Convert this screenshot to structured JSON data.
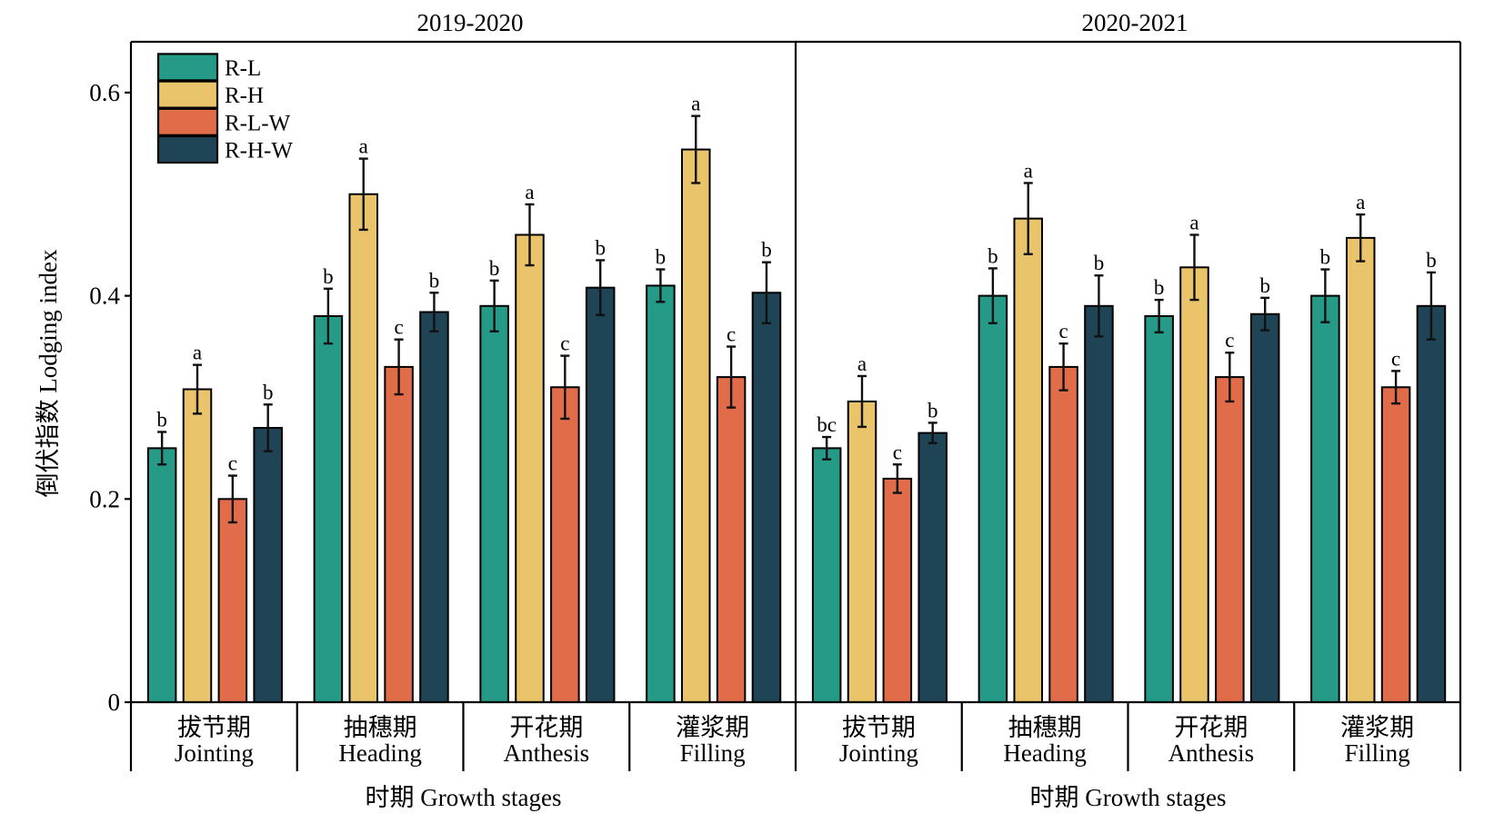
{
  "chart_data": {
    "type": "bar",
    "ylabel": "倒伏指数 Lodging index",
    "xlabel": "时期 Growth stages",
    "ylim": [
      0,
      0.65
    ],
    "yticks": [
      0,
      0.2,
      0.4,
      0.6
    ],
    "ytick_labels": [
      "0",
      "0.2",
      "0.4",
      "0.6"
    ],
    "grid": false,
    "legend_placement": "top-left",
    "categories": [
      {
        "zh": "拔节期",
        "en": "Jointing"
      },
      {
        "zh": "抽穗期",
        "en": "Heading"
      },
      {
        "zh": "开花期",
        "en": "Anthesis"
      },
      {
        "zh": "灌浆期",
        "en": "Filling"
      }
    ],
    "series": [
      {
        "name": "R-L",
        "color": "#259A87"
      },
      {
        "name": "R-H",
        "color": "#E9C46A"
      },
      {
        "name": "R-L-W",
        "color": "#E06C4A"
      },
      {
        "name": "R-H-W",
        "color": "#1E4455"
      }
    ],
    "panels": [
      {
        "title": "2019-2020",
        "series": [
          {
            "values": [
              0.25,
              0.38,
              0.39,
              0.41
            ],
            "errors": [
              0.016,
              0.027,
              0.025,
              0.016
            ],
            "letters": [
              "b",
              "b",
              "b",
              "b"
            ]
          },
          {
            "values": [
              0.308,
              0.5,
              0.46,
              0.544
            ],
            "errors": [
              0.024,
              0.035,
              0.03,
              0.033
            ],
            "letters": [
              "a",
              "a",
              "a",
              "a"
            ]
          },
          {
            "values": [
              0.2,
              0.33,
              0.31,
              0.32
            ],
            "errors": [
              0.023,
              0.027,
              0.031,
              0.03
            ],
            "letters": [
              "c",
              "c",
              "c",
              "c"
            ]
          },
          {
            "values": [
              0.27,
              0.384,
              0.408,
              0.403
            ],
            "errors": [
              0.023,
              0.019,
              0.027,
              0.03
            ],
            "letters": [
              "b",
              "b",
              "b",
              "b"
            ]
          }
        ]
      },
      {
        "title": "2020-2021",
        "series": [
          {
            "values": [
              0.25,
              0.4,
              0.38,
              0.4
            ],
            "errors": [
              0.011,
              0.027,
              0.016,
              0.026
            ],
            "letters": [
              "bc",
              "b",
              "b",
              "b"
            ]
          },
          {
            "values": [
              0.296,
              0.476,
              0.428,
              0.457
            ],
            "errors": [
              0.025,
              0.035,
              0.032,
              0.023
            ],
            "letters": [
              "a",
              "a",
              "a",
              "a"
            ]
          },
          {
            "values": [
              0.22,
              0.33,
              0.32,
              0.31
            ],
            "errors": [
              0.014,
              0.023,
              0.024,
              0.016
            ],
            "letters": [
              "c",
              "c",
              "c",
              "c"
            ]
          },
          {
            "values": [
              0.265,
              0.39,
              0.382,
              0.39
            ],
            "errors": [
              0.01,
              0.03,
              0.016,
              0.033
            ],
            "letters": [
              "b",
              "b",
              "b",
              "b"
            ]
          }
        ]
      }
    ]
  }
}
